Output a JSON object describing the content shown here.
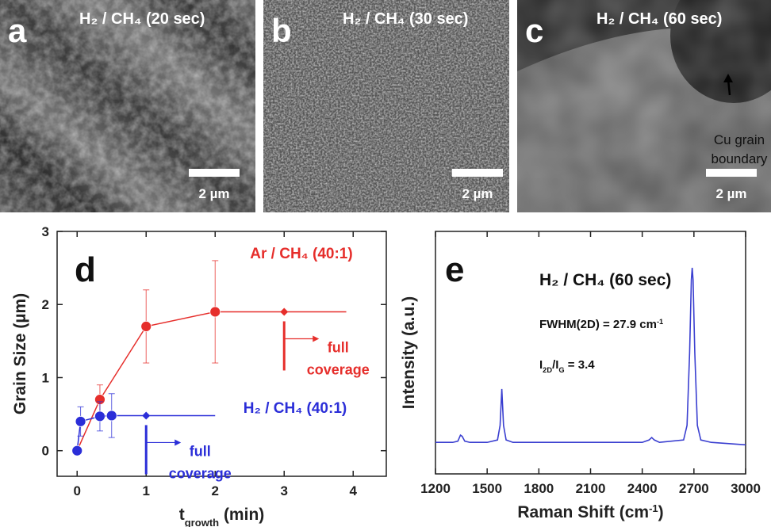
{
  "panels": [
    {
      "label": "a",
      "title": "H₂ / CH₄ (20 sec)",
      "scale_bar": "2 µm"
    },
    {
      "label": "b",
      "title": "H₂ / CH₄ (30 sec)",
      "scale_bar": "2 µm"
    },
    {
      "label": "c",
      "title": "H₂ / CH₄ (60 sec)",
      "scale_bar": "2 µm",
      "annotation": [
        "Cu grain",
        "boundary"
      ]
    }
  ],
  "chart_data": [
    {
      "type": "line",
      "label": "d",
      "xlabel": [
        {
          "text": "t"
        },
        {
          "text": "growth",
          "sub": true
        },
        {
          "text": " (min)"
        }
      ],
      "ylabel": "Grain Size (µm)",
      "xlim": [
        -0.29,
        4.48
      ],
      "ylim": [
        -0.35,
        3
      ],
      "xticks": [
        0,
        1,
        2,
        3,
        4
      ],
      "yticks": [
        0,
        1,
        2,
        3
      ],
      "series": [
        {
          "name": "Ar / CH₄ (40:1)",
          "color": "#e62e2b",
          "x": [
            0,
            0.33,
            1,
            2,
            3,
            3.9
          ],
          "values": [
            0,
            0.7,
            1.7,
            1.9,
            1.9,
            1.9
          ],
          "errors": [
            null,
            0.2,
            0.5,
            0.7,
            null,
            null
          ],
          "markers": [
            "circle",
            "circle",
            "circle",
            "circle",
            "diamond",
            null
          ]
        },
        {
          "name": "H₂ / CH₄ (40:1)",
          "color": "#2b2ed8",
          "x": [
            0,
            0.05,
            0.33,
            0.5,
            1,
            2
          ],
          "values": [
            0,
            0.4,
            0.47,
            0.48,
            0.48,
            0.48
          ],
          "errors": [
            null,
            0.2,
            0.2,
            0.3,
            null,
            null
          ],
          "markers": [
            "circle",
            "circle",
            "circle",
            "circle",
            "diamond",
            null
          ]
        }
      ],
      "annotations": [
        {
          "x": 3,
          "series": 0,
          "text": [
            "full",
            "coverage"
          ]
        },
        {
          "x": 1,
          "series": 1,
          "text": [
            "full",
            "coverage"
          ]
        }
      ]
    },
    {
      "type": "line",
      "label": "e",
      "xlabel": [
        {
          "text": "Raman Shift (cm"
        },
        {
          "text": "-1",
          "sup": true
        },
        {
          "text": ")"
        }
      ],
      "ylabel": "Intensity (a.u.)",
      "xlim": [
        1200,
        3000
      ],
      "ylim": [
        0,
        1
      ],
      "xticks": [
        1200,
        1500,
        1800,
        2100,
        2400,
        2700,
        3000
      ],
      "series": [
        {
          "color": "#3a3fd0",
          "x": [
            1200,
            1300,
            1330,
            1345,
            1355,
            1370,
            1400,
            1500,
            1560,
            1575,
            1585,
            1595,
            1610,
            1650,
            2000,
            2400,
            2440,
            2455,
            2470,
            2500,
            2640,
            2660,
            2675,
            2685,
            2690,
            2695,
            2705,
            2720,
            2740,
            2800,
            3000
          ],
          "values": [
            0.13,
            0.13,
            0.135,
            0.16,
            0.155,
            0.135,
            0.13,
            0.13,
            0.14,
            0.2,
            0.35,
            0.2,
            0.14,
            0.13,
            0.13,
            0.13,
            0.14,
            0.15,
            0.14,
            0.13,
            0.14,
            0.2,
            0.5,
            0.8,
            0.85,
            0.8,
            0.5,
            0.2,
            0.14,
            0.13,
            0.12
          ]
        }
      ],
      "annotations": [
        {
          "text": [
            {
              "text": "H₂ / CH₄ (60 sec)"
            }
          ]
        },
        {
          "text": [
            {
              "text": "FWHM(2D) = 27.9 cm"
            },
            {
              "text": "-1",
              "sup": true
            }
          ]
        },
        {
          "text": [
            {
              "text": "I"
            },
            {
              "text": "2D",
              "sub": true
            },
            {
              "text": "/I"
            },
            {
              "text": "G",
              "sub": true
            },
            {
              "text": " = 3.4"
            }
          ]
        }
      ]
    }
  ]
}
